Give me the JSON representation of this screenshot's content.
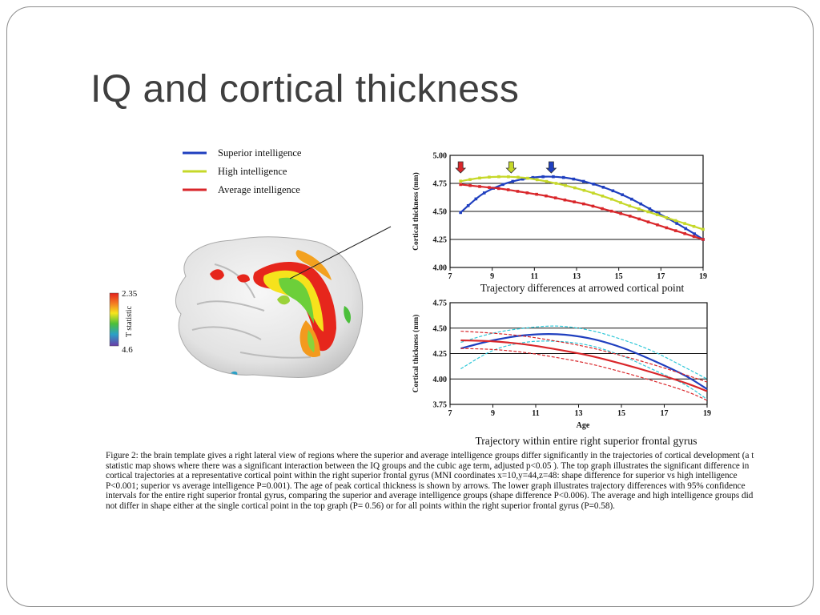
{
  "slide": {
    "title": "IQ and cortical thickness"
  },
  "legend": {
    "items": [
      {
        "label": "Superior intelligence",
        "color": "#1f3fbf"
      },
      {
        "label": "High intelligence",
        "color": "#c6d829"
      },
      {
        "label": "Average intelligence",
        "color": "#d9262a"
      }
    ]
  },
  "colorbar": {
    "max_label": "2.35",
    "min_label": "4.6",
    "axis_label": "T statistic"
  },
  "chart_data": [
    {
      "type": "line",
      "ylabel": "Cortical thickness (mm)",
      "xlabel": "Trajectory differences at arrowed cortical point",
      "xlim": [
        7,
        19
      ],
      "ylim": [
        4.0,
        5.0
      ],
      "xticks": [
        "7",
        "9",
        "11",
        "13",
        "15",
        "17",
        "19"
      ],
      "yticks": [
        "4.00",
        "4.25",
        "4.50",
        "4.75",
        "5.00"
      ],
      "grid": "horizontal",
      "series": [
        {
          "name": "Superior intelligence",
          "color": "#1f3fbf",
          "x": [
            7.5,
            8.5,
            9.5,
            10.5,
            11.5,
            12.5,
            13.5,
            14.5,
            15.5,
            16.5,
            17.5,
            18.5,
            19
          ],
          "values": [
            4.49,
            4.65,
            4.74,
            4.79,
            4.81,
            4.8,
            4.76,
            4.7,
            4.62,
            4.52,
            4.42,
            4.31,
            4.25
          ]
        },
        {
          "name": "High intelligence",
          "color": "#c6d829",
          "x": [
            7.5,
            8.5,
            9.5,
            10.5,
            11.5,
            12.5,
            13.5,
            14.5,
            15.5,
            16.5,
            17.5,
            18.5,
            19
          ],
          "values": [
            4.77,
            4.8,
            4.81,
            4.8,
            4.77,
            4.73,
            4.68,
            4.62,
            4.55,
            4.49,
            4.43,
            4.37,
            4.34
          ]
        },
        {
          "name": "Average intelligence",
          "color": "#d9262a",
          "x": [
            7.5,
            8.5,
            9.5,
            10.5,
            11.5,
            12.5,
            13.5,
            14.5,
            15.5,
            16.5,
            17.5,
            18.5,
            19
          ],
          "values": [
            4.74,
            4.72,
            4.7,
            4.67,
            4.64,
            4.6,
            4.56,
            4.51,
            4.46,
            4.4,
            4.34,
            4.28,
            4.25
          ]
        }
      ],
      "peak_arrows": [
        {
          "x": 7.5,
          "color": "#d9262a"
        },
        {
          "x": 9.9,
          "color": "#c6d829"
        },
        {
          "x": 11.8,
          "color": "#1f3fbf"
        }
      ]
    },
    {
      "type": "line",
      "ylabel": "Cortical thickness (mm)",
      "xlabel": "Age",
      "caption": "Trajectory within entire right superior frontal gyrus",
      "xlim": [
        7,
        19
      ],
      "ylim": [
        3.75,
        4.75
      ],
      "xticks": [
        "7",
        "9",
        "11",
        "13",
        "15",
        "17",
        "19"
      ],
      "yticks": [
        "3.75",
        "4.00",
        "4.25",
        "4.50",
        "4.75"
      ],
      "grid": "horizontal",
      "series": [
        {
          "name": "Superior intelligence",
          "color": "#1f3fbf",
          "x": [
            7.5,
            9,
            10.5,
            12,
            13.5,
            15,
            16.5,
            18,
            19
          ],
          "values": [
            4.3,
            4.38,
            4.43,
            4.44,
            4.4,
            4.31,
            4.18,
            4.03,
            3.9
          ]
        },
        {
          "name": "Superior intelligence 95% CI upper",
          "color": "#2fc8d8",
          "x": [
            7.5,
            9,
            10.5,
            12,
            13.5,
            15,
            16.5,
            18,
            19
          ],
          "values": [
            4.36,
            4.45,
            4.5,
            4.52,
            4.48,
            4.39,
            4.27,
            4.11,
            4.0
          ]
        },
        {
          "name": "Superior intelligence 95% CI lower",
          "color": "#2fc8d8",
          "x": [
            7.5,
            9,
            10.5,
            12,
            13.5,
            15,
            16.5,
            18,
            19
          ],
          "values": [
            4.1,
            4.28,
            4.36,
            4.37,
            4.33,
            4.23,
            4.09,
            3.94,
            3.8
          ]
        },
        {
          "name": "Average intelligence",
          "color": "#d9262a",
          "x": [
            7.5,
            9,
            10.5,
            12,
            13.5,
            15,
            16.5,
            18,
            19
          ],
          "values": [
            4.38,
            4.37,
            4.34,
            4.29,
            4.23,
            4.15,
            4.06,
            3.96,
            3.88
          ]
        },
        {
          "name": "Average intelligence 95% CI upper",
          "color": "#d9262a",
          "x": [
            7.5,
            9,
            10.5,
            12,
            13.5,
            15,
            16.5,
            18,
            19
          ],
          "values": [
            4.47,
            4.45,
            4.42,
            4.37,
            4.31,
            4.23,
            4.14,
            4.04,
            3.97
          ]
        },
        {
          "name": "Average intelligence 95% CI lower",
          "color": "#d9262a",
          "x": [
            7.5,
            9,
            10.5,
            12,
            13.5,
            15,
            16.5,
            18,
            19
          ],
          "values": [
            4.3,
            4.29,
            4.26,
            4.21,
            4.15,
            4.07,
            3.98,
            3.88,
            3.79
          ]
        }
      ]
    }
  ],
  "figure_caption": "Figure 2: the brain template gives a right lateral view of regions where the superior and average intelligence groups differ significantly in the trajectories of cortical development (a t statistic map shows where there was a significant interaction between the IQ groups and the cubic age term, adjusted p<0.05 ). The top graph illustrates the significant difference in cortical trajectories at a representative cortical point within the right superior frontal gyrus (MNI coordinates x=10,y=44,z=48: shape difference for superior vs high intelligence P<0.001; superior vs average intelligence P=0.001).  The age of peak cortical thickness is shown by arrows.  The lower graph illustrates trajectory differences with 95% confidence intervals for the entire right superior frontal gyrus,  comparing the superior and average intelligence groups (shape difference P<0.006).  The average and high intelligence groups did not differ in shape either at the single cortical point in the top graph (P= 0.56) or for all points within the right superior frontal gyrus (P=0.58)."
}
